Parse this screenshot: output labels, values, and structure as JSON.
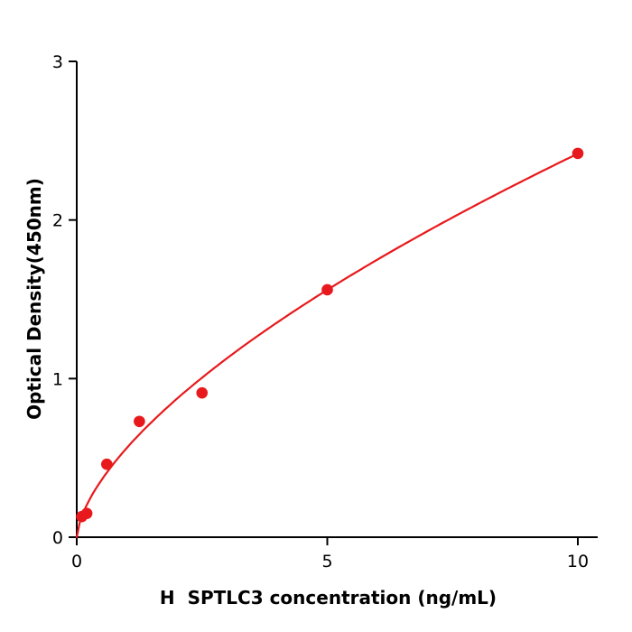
{
  "chart_data": {
    "type": "scatter",
    "title": "",
    "xlabel": "H  SPTLC3 concentration (ng/mL)",
    "ylabel": "Optical Density(450nm)",
    "xlim": [
      0,
      10
    ],
    "ylim": [
      0,
      3
    ],
    "xticks": [
      0,
      5,
      10
    ],
    "yticks": [
      0,
      1,
      2,
      3
    ],
    "grid": false,
    "legend": "none",
    "axis_color": "#000000",
    "point_color": "#e8191c",
    "line_color": "#e8191c",
    "points": {
      "x": [
        0.1,
        0.2,
        0.6,
        1.25,
        2.5,
        5,
        10
      ],
      "y": [
        0.13,
        0.15,
        0.46,
        0.73,
        0.91,
        1.56,
        2.42
      ]
    },
    "fit": {
      "model": "power",
      "equation": "y = a * x^b",
      "a": 0.563,
      "b": 0.633
    }
  }
}
